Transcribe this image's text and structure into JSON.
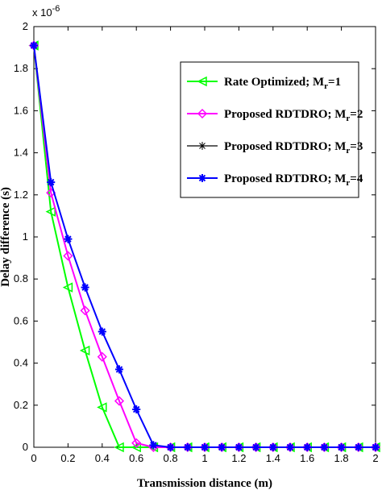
{
  "chart_data": {
    "type": "line",
    "xlabel": "Transmission distance (m)",
    "ylabel": "Delay difference (s)",
    "exponent_base": "x 10",
    "exponent_power": "-6",
    "xlim": [
      0,
      2
    ],
    "ylim": [
      0,
      2
    ],
    "xticks": [
      "0",
      "0.2",
      "0.4",
      "0.6",
      "0.8",
      "1",
      "1.2",
      "1.4",
      "1.6",
      "1.8",
      "2"
    ],
    "yticks": [
      "0",
      "0.2",
      "0.4",
      "0.6",
      "0.8",
      "1",
      "1.2",
      "1.4",
      "1.6",
      "1.8",
      "2"
    ],
    "grid": false,
    "legend_position": "top-right",
    "x": [
      0,
      0.1,
      0.2,
      0.3,
      0.4,
      0.5,
      0.6,
      0.7,
      0.8,
      0.9,
      1.0,
      1.1,
      1.2,
      1.3,
      1.4,
      1.5,
      1.6,
      1.7,
      1.8,
      1.9,
      2.0
    ],
    "series": [
      {
        "label_main": "Rate Optimized; M",
        "label_sub": "r",
        "label_tail": "=1",
        "color": "#00ff00",
        "marker": "triangle-left",
        "values": [
          1.91,
          1.12,
          0.76,
          0.46,
          0.19,
          0.0,
          0.0,
          0.0,
          0.0,
          0.0,
          0.0,
          0.0,
          0.0,
          0.0,
          0.0,
          0.0,
          0.0,
          0.0,
          0.0,
          0.0,
          0.0
        ]
      },
      {
        "label_main": "Proposed RDTDRO; M",
        "label_sub": "r",
        "label_tail": "=2",
        "color": "#ff00ff",
        "marker": "diamond",
        "values": [
          1.91,
          1.21,
          0.91,
          0.65,
          0.43,
          0.22,
          0.02,
          0.0,
          0.0,
          0.0,
          0.0,
          0.0,
          0.0,
          0.0,
          0.0,
          0.0,
          0.0,
          0.0,
          0.0,
          0.0,
          0.0
        ]
      },
      {
        "label_main": "Proposed RDTDRO; M",
        "label_sub": "r",
        "label_tail": "=3",
        "color": "#000000",
        "marker": "star",
        "values": [
          1.91,
          1.26,
          0.99,
          0.76,
          0.55,
          0.37,
          0.18,
          0.01,
          0.0,
          0.0,
          0.0,
          0.0,
          0.0,
          0.0,
          0.0,
          0.0,
          0.0,
          0.0,
          0.0,
          0.0,
          0.0
        ]
      },
      {
        "label_main": "Proposed RDTDRO; M",
        "label_sub": "r",
        "label_tail": "=4",
        "color": "#0000ff",
        "marker": "star-filled",
        "values": [
          1.91,
          1.26,
          0.99,
          0.76,
          0.55,
          0.37,
          0.18,
          0.01,
          0.0,
          0.0,
          0.0,
          0.0,
          0.0,
          0.0,
          0.0,
          0.0,
          0.0,
          0.0,
          0.0,
          0.0,
          0.0
        ]
      }
    ]
  }
}
